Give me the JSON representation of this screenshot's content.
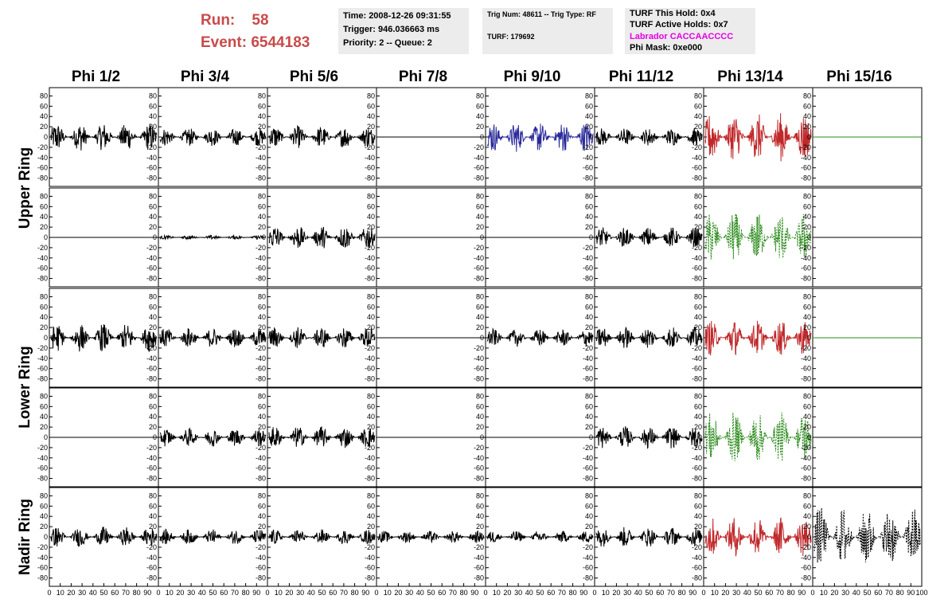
{
  "header": {
    "run_label": "Run:",
    "run_value": "58",
    "event_label": "Event:",
    "event_value": "6544183",
    "time": "Time: 2008-12-26 09:31:55",
    "trigger": "Trigger: 946.036663 ms",
    "priority": "Priority: 2 -- Queue: 2",
    "trig_num": "Trig Num: 48611 -- Trig Type: RF",
    "turf": "TURF: 179692",
    "turf_this_hold": "TURF This Hold: 0x4",
    "turf_active_holds": "TURF Active Holds: 0x7",
    "labrador": "Labrador CACCAACCCC",
    "labrador_color": "#e600e6",
    "phi_mask": "Phi Mask: 0xe000"
  },
  "columns": [
    "Phi 1/2",
    "Phi 3/4",
    "Phi 5/6",
    "Phi 7/8",
    "Phi 9/10",
    "Phi 11/12",
    "Phi 13/14",
    "Phi 15/16"
  ],
  "rows": [
    "Upper Ring",
    "Lower Ring",
    "Nadir Ring"
  ],
  "chart_data": {
    "type": "line",
    "ylim": [
      -90,
      90
    ],
    "xlim": [
      0,
      100
    ],
    "yticks": [
      "80",
      "60",
      "40",
      "20",
      "0",
      "-20",
      "-40",
      "-60",
      "-80"
    ],
    "xticks": [
      "0",
      "10",
      "20",
      "30",
      "40",
      "50",
      "60",
      "70",
      "80",
      "90",
      "100"
    ],
    "colors": {
      "default": "#000000",
      "blue": "#2a2a9c",
      "red": "#c0282a",
      "green": "#2a8a1a"
    },
    "panels": [
      [
        {
          "amp": 28,
          "color": "default"
        },
        {
          "amp": 18,
          "color": "default"
        },
        {
          "amp": 22,
          "color": "default"
        },
        {
          "amp": 0,
          "color": "default"
        },
        {
          "amp": 30,
          "color": "blue"
        },
        {
          "amp": 18,
          "color": "default"
        },
        {
          "amp": 48,
          "color": "red"
        },
        {
          "amp": 0,
          "color": "green"
        }
      ],
      [
        {
          "amp": 0,
          "color": "default"
        },
        {
          "amp": 4,
          "color": "default"
        },
        {
          "amp": 24,
          "color": "default"
        },
        {
          "amp": 0,
          "color": "default"
        },
        {
          "amp": 0,
          "color": "default"
        },
        {
          "amp": 20,
          "color": "default"
        },
        {
          "amp": 50,
          "color": "green",
          "dashed": true
        },
        {
          "amp": 0,
          "color": "default"
        }
      ],
      [
        {
          "amp": 28,
          "color": "default"
        },
        {
          "amp": 20,
          "color": "default"
        },
        {
          "amp": 22,
          "color": "default"
        },
        {
          "amp": 0,
          "color": "default"
        },
        {
          "amp": 18,
          "color": "default"
        },
        {
          "amp": 22,
          "color": "default"
        },
        {
          "amp": 35,
          "color": "red"
        },
        {
          "amp": 0,
          "color": "green"
        }
      ],
      [
        {
          "amp": 0,
          "color": "default"
        },
        {
          "amp": 18,
          "color": "default"
        },
        {
          "amp": 22,
          "color": "default"
        },
        {
          "amp": 0,
          "color": "default"
        },
        {
          "amp": 0,
          "color": "default"
        },
        {
          "amp": 22,
          "color": "default"
        },
        {
          "amp": 50,
          "color": "green",
          "dashed": true
        },
        {
          "amp": 0,
          "color": "default"
        }
      ],
      [
        {
          "amp": 20,
          "color": "default"
        },
        {
          "amp": 15,
          "color": "default"
        },
        {
          "amp": 15,
          "color": "default"
        },
        {
          "amp": 12,
          "color": "default"
        },
        {
          "amp": 12,
          "color": "default"
        },
        {
          "amp": 20,
          "color": "default"
        },
        {
          "amp": 40,
          "color": "red"
        },
        {
          "amp": 60,
          "color": "default",
          "dashed": true
        }
      ]
    ]
  }
}
